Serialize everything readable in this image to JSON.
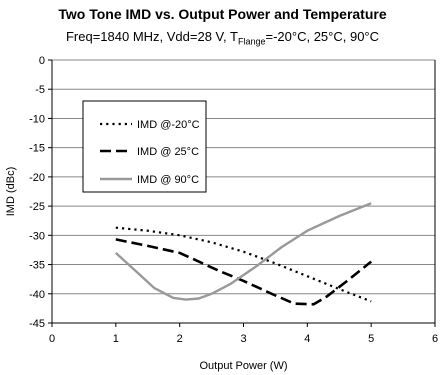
{
  "chart_data": {
    "type": "line",
    "title": "Two Tone IMD vs. Output Power and Temperature",
    "subtitle": {
      "prefix": "Freq=1840 MHz, Vdd=28 V, T",
      "subscript": "Flange",
      "suffix": "=-20°C, 25°C, 90°C"
    },
    "xlabel": "Output Power (W)",
    "ylabel": "IMD (dBc)",
    "xlim": [
      0,
      6
    ],
    "ylim": [
      -45,
      0
    ],
    "xticks": [
      0,
      1,
      2,
      3,
      4,
      5,
      6
    ],
    "yticks": [
      0,
      -5,
      -10,
      -15,
      -20,
      -25,
      -30,
      -35,
      -40,
      -45
    ],
    "grid": "horizontal",
    "legend_position": "upper-left",
    "series": [
      {
        "name": "IMD @-20°C",
        "style": "dotted",
        "color": "#000000",
        "x": [
          1,
          1.5,
          2,
          2.5,
          3,
          3.5,
          4,
          4.5,
          5
        ],
        "y": [
          -28.7,
          -29.2,
          -30.0,
          -31.2,
          -32.8,
          -34.8,
          -37.0,
          -39.2,
          -41.3
        ]
      },
      {
        "name": "IMD @ 25°C",
        "style": "dashed",
        "color": "#000000",
        "x": [
          1,
          1.5,
          2,
          2.3,
          2.6,
          3,
          3.5,
          3.8,
          4.1,
          4.3,
          4.6,
          5
        ],
        "y": [
          -30.7,
          -31.8,
          -33.0,
          -34.5,
          -36.0,
          -37.8,
          -40.3,
          -41.7,
          -41.8,
          -40.5,
          -38.0,
          -34.5
        ]
      },
      {
        "name": "IMD @ 90°C",
        "style": "solid",
        "color": "#999999",
        "x": [
          1,
          1.3,
          1.6,
          1.9,
          2.1,
          2.3,
          2.5,
          2.8,
          3.2,
          3.6,
          4,
          4.5,
          5
        ],
        "y": [
          -33.0,
          -36.0,
          -39.0,
          -40.7,
          -41.0,
          -40.8,
          -40.0,
          -38.3,
          -35.3,
          -32.0,
          -29.2,
          -26.7,
          -24.5
        ]
      }
    ]
  }
}
